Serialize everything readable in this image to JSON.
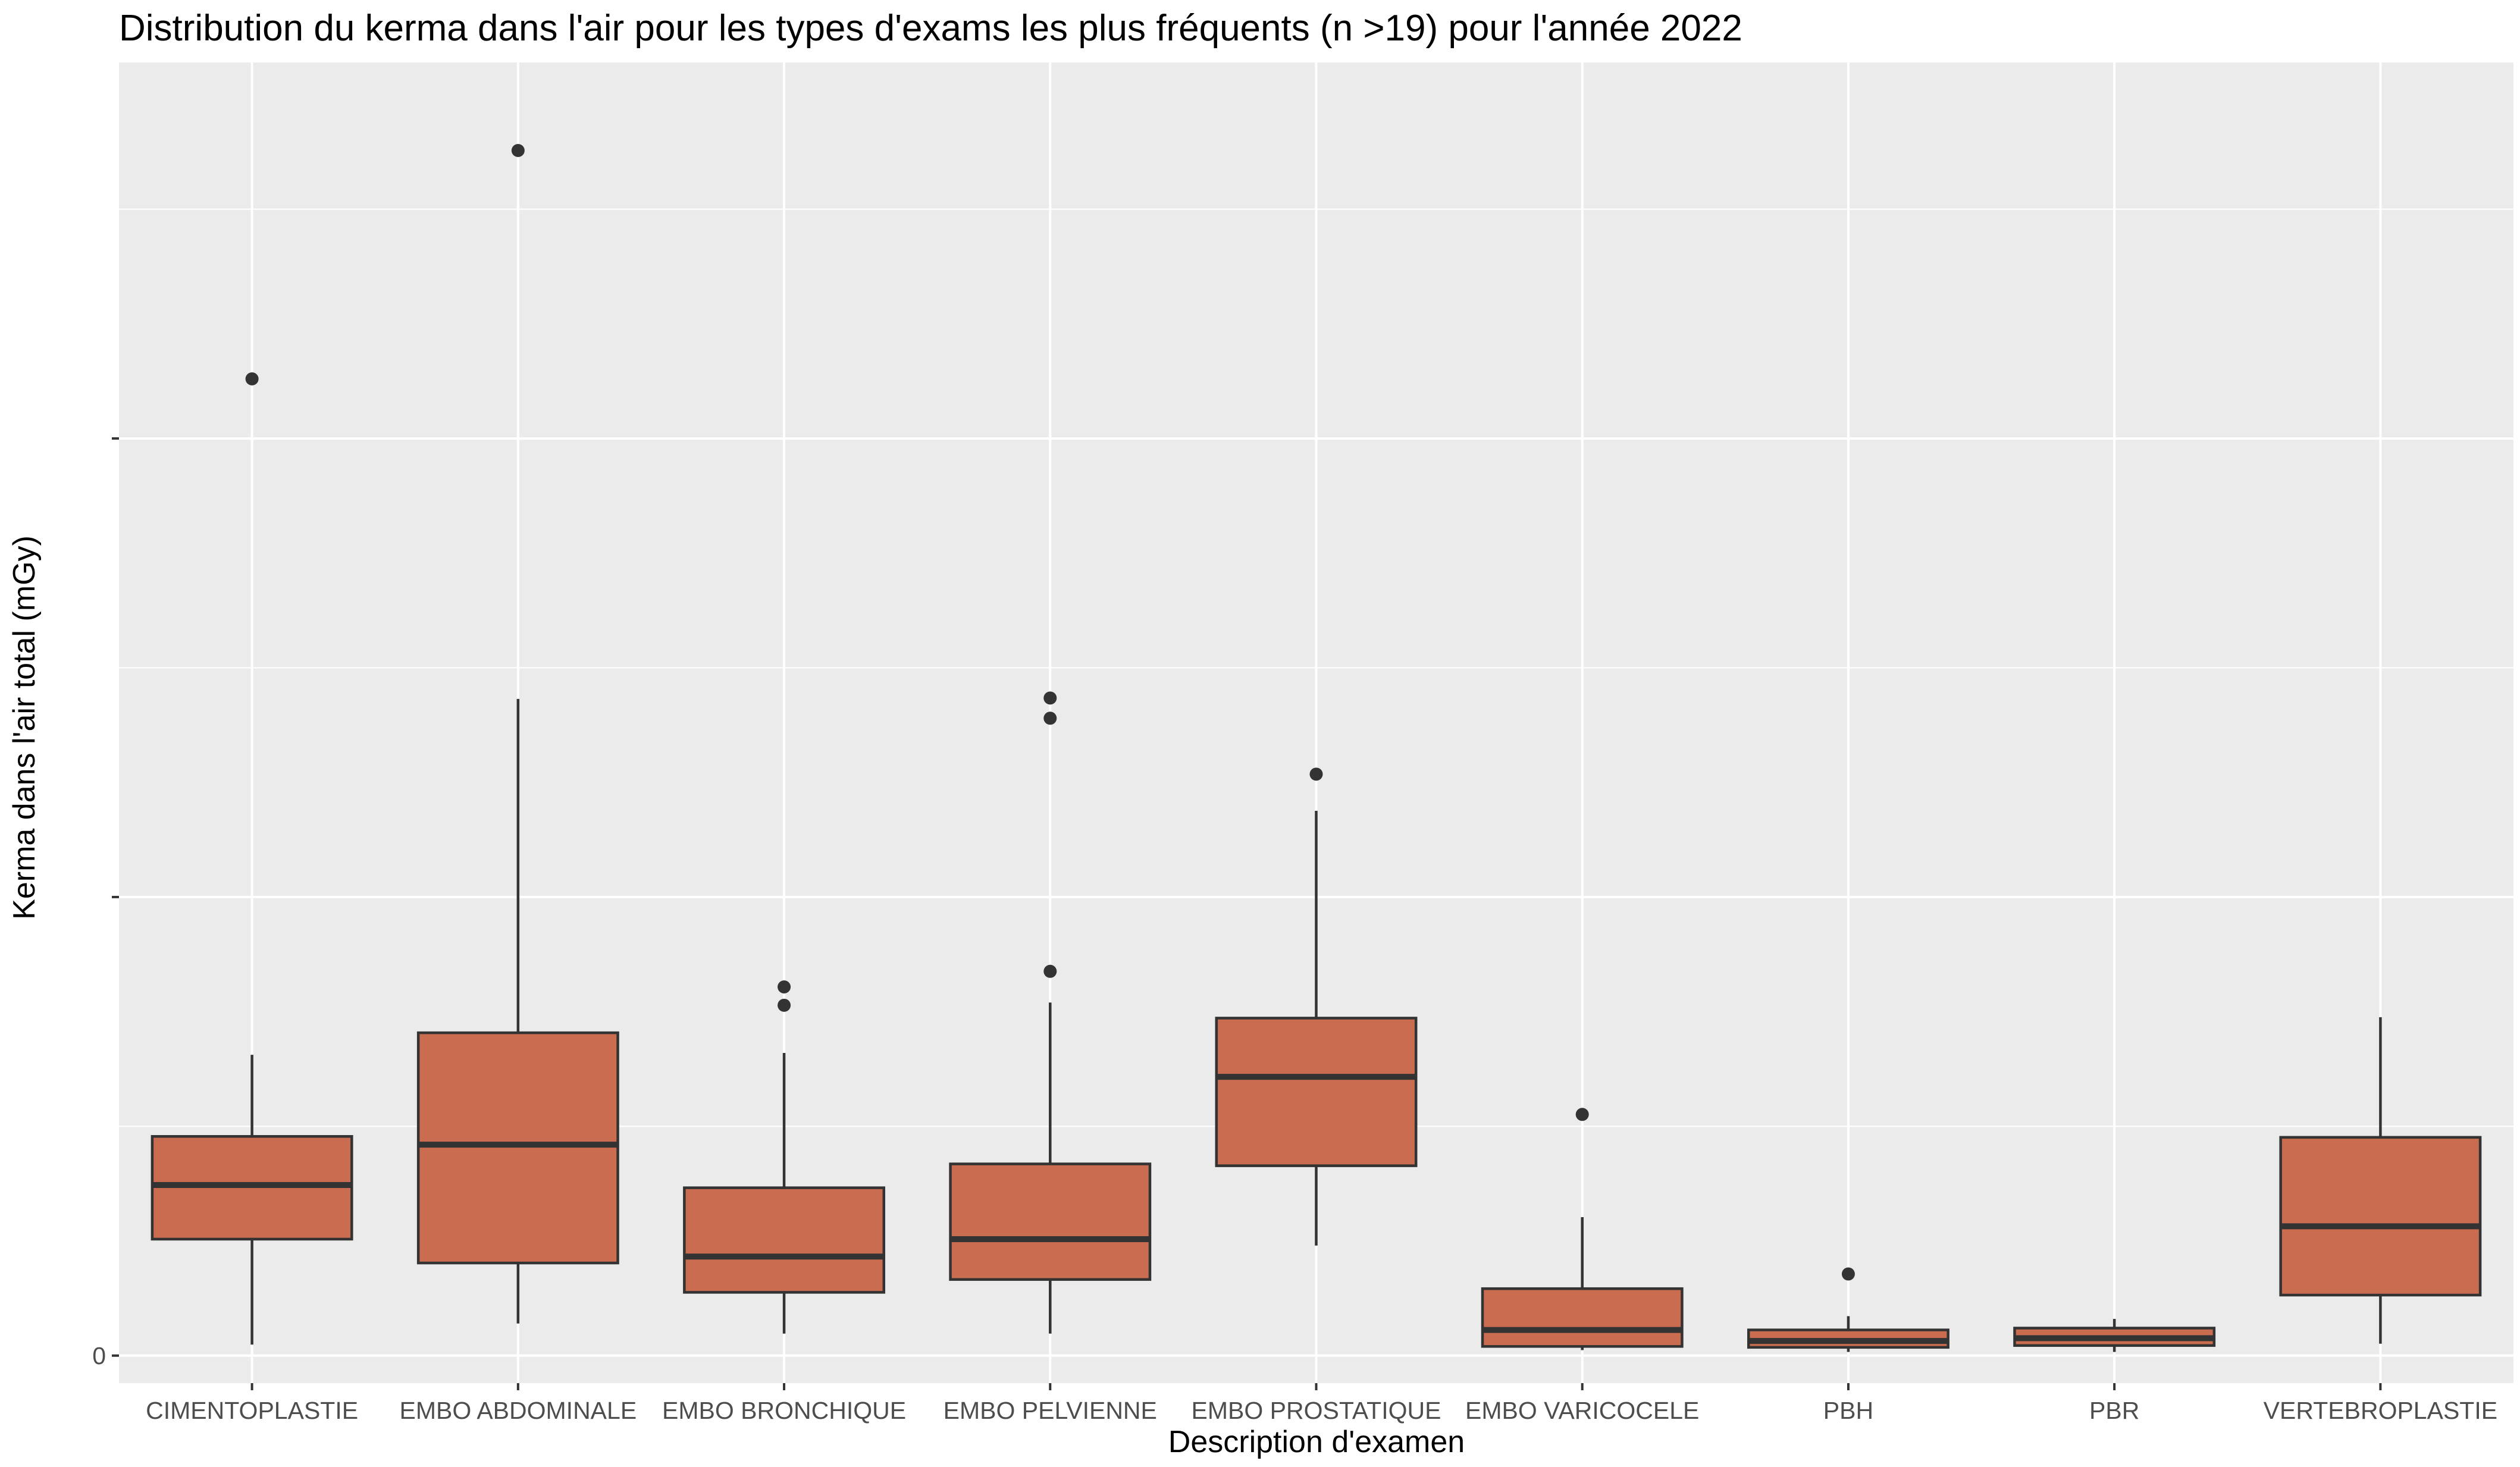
{
  "chart_data": {
    "type": "boxplot",
    "title": "Distribution du kerma dans l'air pour les types d'exams les plus fréquents (n >19) pour l'année 2022",
    "xlabel": "Description d'examen",
    "ylabel": "Kerma dans l'air total (mGy)",
    "ylim": [
      -0.3,
      14.1
    ],
    "y_major_ticks": [
      0,
      5,
      10
    ],
    "y_tick_labels": [
      "0",
      "",
      ""
    ],
    "y_minor_ticks": [
      2.5,
      7.5,
      12.5
    ],
    "grid": true,
    "legend": "none",
    "categories": [
      "CIMENTOPLASTIE",
      "EMBO ABDOMINALE",
      "EMBO BRONCHIQUE",
      "EMBO PELVIENNE",
      "EMBO PROSTATIQUE",
      "EMBO VARICOCELE",
      "PBH",
      "PBR",
      "VERTEBROPLASTIE"
    ],
    "boxes": [
      {
        "category": "CIMENTOPLASTIE",
        "whisker_low": 0.12,
        "q1": 1.27,
        "median": 1.86,
        "q3": 2.39,
        "whisker_high": 3.28,
        "outliers": [
          10.65
        ]
      },
      {
        "category": "EMBO ABDOMINALE",
        "whisker_low": 0.35,
        "q1": 1.01,
        "median": 2.3,
        "q3": 3.52,
        "whisker_high": 7.16,
        "outliers": [
          13.14
        ]
      },
      {
        "category": "EMBO BRONCHIQUE",
        "whisker_low": 0.24,
        "q1": 0.69,
        "median": 1.08,
        "q3": 1.83,
        "whisker_high": 3.3,
        "outliers": [
          4.02,
          3.82
        ]
      },
      {
        "category": "EMBO PELVIENNE",
        "whisker_low": 0.24,
        "q1": 0.83,
        "median": 1.27,
        "q3": 2.09,
        "whisker_high": 3.85,
        "outliers": [
          4.19,
          6.95,
          7.17
        ]
      },
      {
        "category": "EMBO PROSTATIQUE",
        "whisker_low": 1.2,
        "q1": 2.07,
        "median": 3.04,
        "q3": 3.68,
        "whisker_high": 5.94,
        "outliers": [
          6.34
        ]
      },
      {
        "category": "EMBO VARICOCELE",
        "whisker_low": 0.06,
        "q1": 0.1,
        "median": 0.28,
        "q3": 0.73,
        "whisker_high": 1.51,
        "outliers": [
          2.63
        ]
      },
      {
        "category": "PBH",
        "whisker_low": 0.04,
        "q1": 0.09,
        "median": 0.16,
        "q3": 0.28,
        "whisker_high": 0.43,
        "outliers": [
          0.89
        ]
      },
      {
        "category": "PBR",
        "whisker_low": 0.04,
        "q1": 0.11,
        "median": 0.19,
        "q3": 0.3,
        "whisker_high": 0.4,
        "outliers": []
      },
      {
        "category": "VERTEBROPLASTIE",
        "whisker_low": 0.13,
        "q1": 0.66,
        "median": 1.41,
        "q3": 2.38,
        "whisker_high": 3.69,
        "outliers": []
      }
    ],
    "colors": {
      "panel_bg": "#ebebeb",
      "grid": "#ffffff",
      "box_fill": "#c96c4f",
      "box_line": "#333333",
      "tick": "#333333",
      "tick_label": "#4d4d4d"
    }
  }
}
